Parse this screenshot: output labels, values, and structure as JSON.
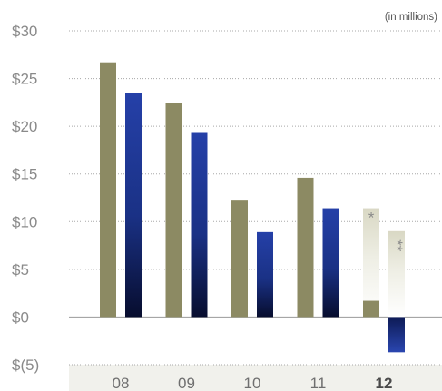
{
  "chart_data": {
    "type": "bar",
    "unit_label": "(in millions)",
    "categories": [
      "08",
      "09",
      "10",
      "11",
      "12"
    ],
    "highlight_category": "12",
    "ylim": [
      -5,
      30
    ],
    "yticks": [
      {
        "value": 30,
        "label": "$30"
      },
      {
        "value": 25,
        "label": "$25"
      },
      {
        "value": 20,
        "label": "$20"
      },
      {
        "value": 15,
        "label": "$15"
      },
      {
        "value": 10,
        "label": "$10"
      },
      {
        "value": 5,
        "label": "$5"
      },
      {
        "value": 0,
        "label": "$0"
      },
      {
        "value": -5,
        "label": "$(5)"
      }
    ],
    "grid": "dotted horizontal",
    "series": [
      {
        "color": "#8c8a63",
        "values": [
          26.7,
          22.4,
          12.2,
          14.6,
          1.7
        ]
      },
      {
        "color": "#1f3d9a",
        "values": [
          23.5,
          19.3,
          8.9,
          11.4,
          -3.7
        ]
      }
    ],
    "ghost_bars": [
      {
        "series": 0,
        "category": "12",
        "value": 11.4,
        "annotation": "*"
      },
      {
        "series": 1,
        "category": "12",
        "value": 9.0,
        "annotation": "**"
      }
    ]
  }
}
